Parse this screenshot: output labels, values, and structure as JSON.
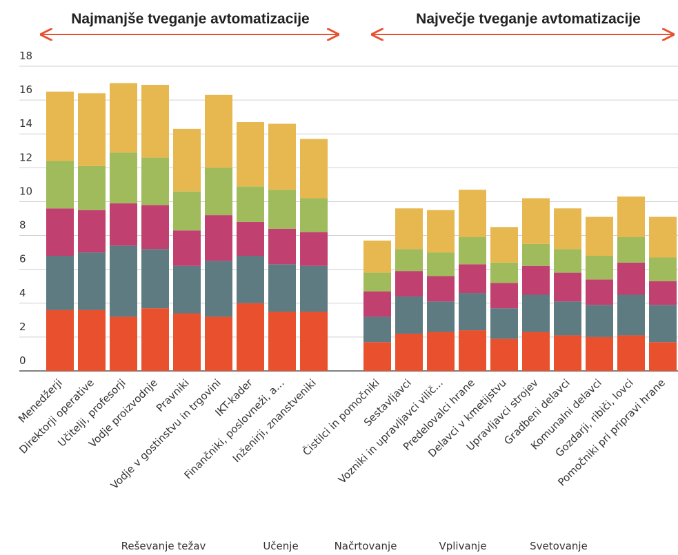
{
  "chart_data": {
    "type": "bar",
    "stacked": true,
    "annotations": [
      "Najmanjše tveganje avtomatizacije",
      "Največje tveganje avtomatizacije"
    ],
    "categories": [
      "Menedžerji",
      "Direktorji operative",
      "Učitelji, profesorji",
      "Vodje proizvodnje",
      "Pravniki",
      "Vodje v gostinstvu in trgovini",
      "IKT-kader",
      "Finančniki, poslovneži, a…",
      "Inženirji, znanstveniki",
      null,
      "Čistilci in pomočniki",
      "Sestavljavci",
      "Vozniki in upravljavci vilič...",
      "Predelovalci hrane",
      "Delavci v kmetijstvu",
      "Upravljavci strojev",
      "Gradbeni delavci",
      "Komunalni delavci",
      "Gozdarji, ribiči, lovci",
      "Pomočniki pri pripravi hrane"
    ],
    "series": [
      {
        "name": "Reševanje težav",
        "color": "#e8502e",
        "values": [
          3.6,
          3.6,
          3.2,
          3.7,
          3.4,
          3.2,
          4.0,
          3.5,
          3.5,
          null,
          1.7,
          2.2,
          2.3,
          2.4,
          1.9,
          2.3,
          2.1,
          2.0,
          2.1,
          1.7
        ]
      },
      {
        "name": "Učenje",
        "color": "#5e7b82",
        "values": [
          3.2,
          3.4,
          4.2,
          3.5,
          2.8,
          3.3,
          2.8,
          2.8,
          2.7,
          null,
          1.5,
          2.2,
          1.8,
          2.2,
          1.8,
          2.2,
          2.0,
          1.9,
          2.4,
          2.2
        ]
      },
      {
        "name": "Načrtovanje",
        "color": "#c0416f",
        "values": [
          2.8,
          2.5,
          2.5,
          2.6,
          2.1,
          2.7,
          2.0,
          2.1,
          2.0,
          null,
          1.5,
          1.5,
          1.5,
          1.7,
          1.5,
          1.7,
          1.7,
          1.5,
          1.9,
          1.4
        ]
      },
      {
        "name": "Vplivanje",
        "color": "#9fbb5c",
        "values": [
          2.8,
          2.6,
          3.0,
          2.8,
          2.3,
          2.8,
          2.1,
          2.3,
          2.0,
          null,
          1.1,
          1.3,
          1.4,
          1.6,
          1.2,
          1.3,
          1.4,
          1.4,
          1.5,
          1.4
        ]
      },
      {
        "name": "Svetovanje",
        "color": "#e6b84f",
        "values": [
          4.1,
          4.3,
          4.1,
          4.3,
          3.7,
          4.3,
          3.8,
          3.9,
          3.5,
          null,
          1.9,
          2.4,
          2.5,
          2.8,
          2.1,
          2.7,
          2.4,
          2.3,
          2.4,
          2.4
        ]
      }
    ],
    "ylim": [
      0,
      18
    ],
    "yticks": [
      0,
      2,
      4,
      6,
      8,
      10,
      12,
      14,
      16,
      18
    ],
    "grid": true,
    "legend": "bottom"
  }
}
